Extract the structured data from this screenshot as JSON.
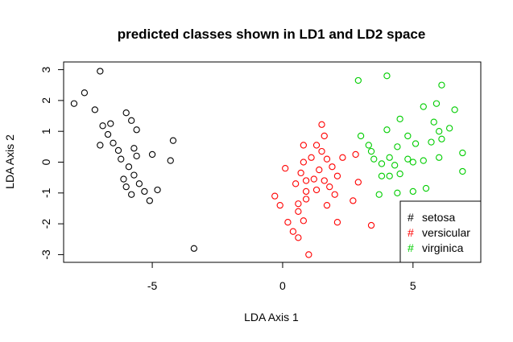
{
  "chart_data": {
    "type": "scatter",
    "title": "predicted classes shown in LD1 and LD2 space",
    "xlabel": "LDA Axis 1",
    "ylabel": "LDA Axis 2",
    "xlim": [
      -8.4,
      7.6
    ],
    "ylim": [
      -3.25,
      3.25
    ],
    "x_ticks": [
      {
        "value": -5,
        "label": "-5"
      },
      {
        "value": 0,
        "label": "0"
      },
      {
        "value": 5,
        "label": "5"
      }
    ],
    "y_ticks": [
      {
        "value": -3,
        "label": "-3"
      },
      {
        "value": -2,
        "label": "-2"
      },
      {
        "value": -1,
        "label": "-1"
      },
      {
        "value": 0,
        "label": "0"
      },
      {
        "value": 1,
        "label": "1"
      },
      {
        "value": 2,
        "label": "2"
      },
      {
        "value": 3,
        "label": "3"
      }
    ],
    "grid": false,
    "marker": "open-circle",
    "legend": {
      "position": "bottom-right",
      "symbol": "#",
      "entries": [
        {
          "label": "setosa",
          "color": "#000000"
        },
        {
          "label": "versicular",
          "color": "#ff0000"
        },
        {
          "label": "virginica",
          "color": "#00cd00"
        }
      ]
    },
    "series": [
      {
        "name": "setosa",
        "color": "#000000",
        "points": [
          [
            -7.0,
            2.95
          ],
          [
            -7.6,
            2.25
          ],
          [
            -8.0,
            1.9
          ],
          [
            -7.2,
            1.7
          ],
          [
            -6.0,
            1.6
          ],
          [
            -6.6,
            1.25
          ],
          [
            -5.8,
            1.35
          ],
          [
            -6.9,
            1.18
          ],
          [
            -6.7,
            0.9
          ],
          [
            -5.6,
            1.05
          ],
          [
            -6.5,
            0.62
          ],
          [
            -7.0,
            0.55
          ],
          [
            -6.3,
            0.38
          ],
          [
            -5.7,
            0.45
          ],
          [
            -5.6,
            0.2
          ],
          [
            -6.2,
            0.1
          ],
          [
            -5.0,
            0.25
          ],
          [
            -4.2,
            0.7
          ],
          [
            -4.3,
            0.05
          ],
          [
            -5.9,
            -0.15
          ],
          [
            -5.7,
            -0.42
          ],
          [
            -6.1,
            -0.55
          ],
          [
            -5.5,
            -0.7
          ],
          [
            -6.0,
            -0.8
          ],
          [
            -4.8,
            -0.9
          ],
          [
            -5.3,
            -0.95
          ],
          [
            -5.8,
            -1.05
          ],
          [
            -5.1,
            -1.25
          ],
          [
            -3.4,
            -2.8
          ]
        ]
      },
      {
        "name": "versicular",
        "color": "#ff0000",
        "points": [
          [
            1.5,
            1.22
          ],
          [
            1.6,
            0.85
          ],
          [
            0.8,
            0.55
          ],
          [
            1.3,
            0.55
          ],
          [
            1.5,
            0.35
          ],
          [
            2.3,
            0.15
          ],
          [
            2.8,
            0.25
          ],
          [
            1.1,
            0.15
          ],
          [
            0.8,
            0.0
          ],
          [
            1.7,
            0.1
          ],
          [
            1.4,
            -0.25
          ],
          [
            1.9,
            -0.15
          ],
          [
            0.1,
            -0.2
          ],
          [
            0.7,
            -0.35
          ],
          [
            1.2,
            -0.55
          ],
          [
            2.1,
            -0.45
          ],
          [
            0.9,
            -0.6
          ],
          [
            1.6,
            -0.6
          ],
          [
            0.5,
            -0.7
          ],
          [
            1.8,
            -0.8
          ],
          [
            2.9,
            -0.65
          ],
          [
            0.9,
            -0.95
          ],
          [
            1.3,
            -0.9
          ],
          [
            2.0,
            -1.05
          ],
          [
            -0.3,
            -1.1
          ],
          [
            0.9,
            -1.2
          ],
          [
            2.7,
            -1.25
          ],
          [
            -0.1,
            -1.4
          ],
          [
            0.6,
            -1.35
          ],
          [
            1.7,
            -1.4
          ],
          [
            0.6,
            -1.6
          ],
          [
            2.1,
            -1.95
          ],
          [
            0.2,
            -1.95
          ],
          [
            0.8,
            -1.9
          ],
          [
            3.4,
            -2.05
          ],
          [
            0.4,
            -2.25
          ],
          [
            0.6,
            -2.45
          ],
          [
            1.0,
            -3.0
          ]
        ]
      },
      {
        "name": "virginica",
        "color": "#00cd00",
        "points": [
          [
            2.9,
            2.65
          ],
          [
            4.0,
            2.8
          ],
          [
            6.1,
            2.5
          ],
          [
            4.5,
            1.4
          ],
          [
            5.4,
            1.8
          ],
          [
            5.9,
            1.9
          ],
          [
            6.6,
            1.7
          ],
          [
            5.8,
            1.3
          ],
          [
            4.0,
            1.05
          ],
          [
            6.0,
            1.0
          ],
          [
            6.4,
            1.1
          ],
          [
            3.0,
            0.85
          ],
          [
            4.8,
            0.85
          ],
          [
            5.7,
            0.65
          ],
          [
            6.1,
            0.75
          ],
          [
            3.3,
            0.55
          ],
          [
            4.4,
            0.5
          ],
          [
            5.1,
            0.6
          ],
          [
            3.4,
            0.35
          ],
          [
            6.9,
            0.3
          ],
          [
            3.5,
            0.1
          ],
          [
            4.1,
            0.15
          ],
          [
            4.8,
            0.1
          ],
          [
            5.4,
            0.05
          ],
          [
            6.0,
            0.15
          ],
          [
            3.8,
            -0.05
          ],
          [
            4.3,
            -0.1
          ],
          [
            5.0,
            0.0
          ],
          [
            3.8,
            -0.45
          ],
          [
            4.1,
            -0.45
          ],
          [
            4.5,
            -0.38
          ],
          [
            6.9,
            -0.3
          ],
          [
            3.7,
            -1.05
          ],
          [
            4.4,
            -1.0
          ],
          [
            5.5,
            -0.85
          ],
          [
            5.0,
            -0.95
          ]
        ]
      }
    ]
  }
}
